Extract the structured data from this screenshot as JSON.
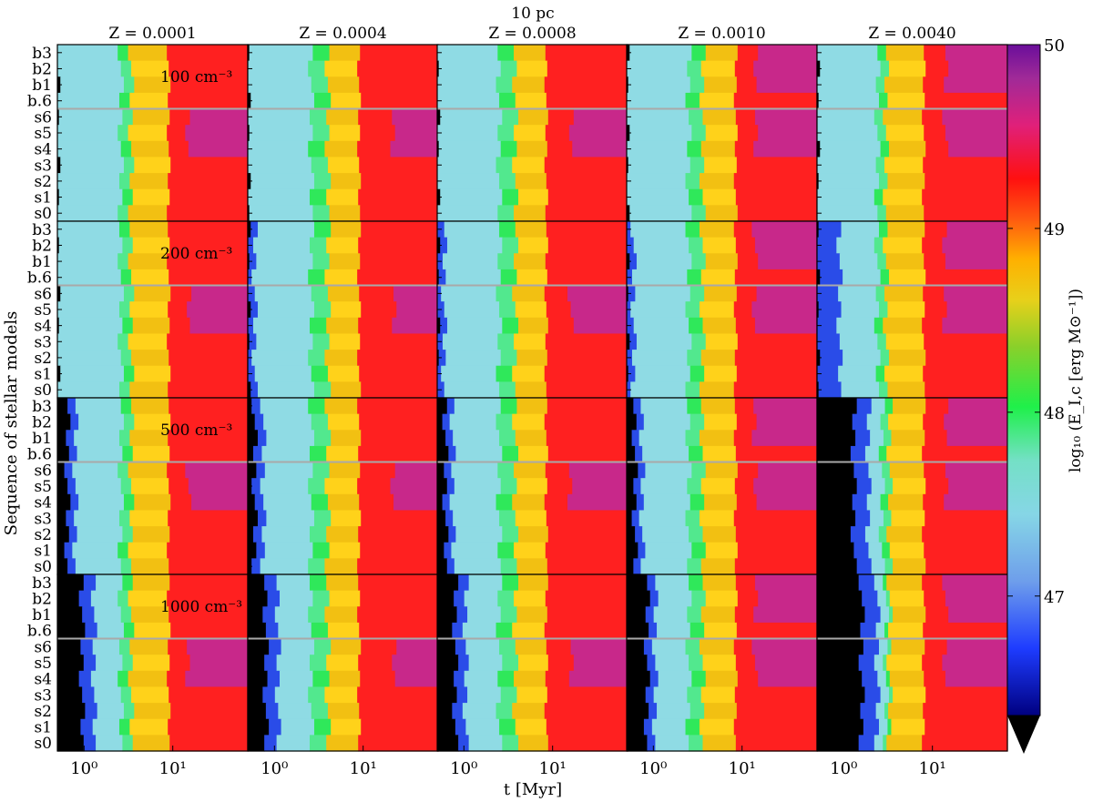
{
  "chart_data": {
    "type": "heatmap",
    "suptitle": "10 pc",
    "column_titles": [
      "Z = 0.0001",
      "Z = 0.0004",
      "Z = 0.0008",
      "Z = 0.0010",
      "Z = 0.0040"
    ],
    "row_annotations": [
      "100 cm⁻³",
      "200 cm⁻³",
      "500 cm⁻³",
      "1000 cm⁻³"
    ],
    "y_tick_labels": [
      "b3",
      "b2",
      "b1",
      "b.6",
      "s6",
      "s5",
      "s4",
      "s3",
      "s2",
      "s1",
      "s0"
    ],
    "x_tick_labels": [
      "10⁰",
      "10¹"
    ],
    "xlabel": "t [Myr]",
    "ylabel": "Sequence of stellar models",
    "colorbar": {
      "label": "log₁₀ (E_I,c [erg M⊙⁻¹])",
      "ticks": [
        "50",
        "49",
        "48",
        "47"
      ],
      "tick_values": [
        50,
        49,
        48,
        47
      ],
      "range": [
        46.35,
        50.0
      ],
      "extend": "min",
      "colormap": "gist_ncar-like"
    },
    "x_scale": "log",
    "xlim_myr": [
      0.5,
      70
    ],
    "densities_cm3": [
      100,
      200,
      500,
      1000
    ],
    "metallicities": [
      0.0001,
      0.0004,
      0.0008,
      0.001,
      0.004
    ],
    "separator_between": [
      "b.6",
      "s6"
    ],
    "approx_transition_times_myr": {
      "note": "transition times (Myr) at which the colour changes, per density row (columns left to right)",
      "black_end": [
        [
          0.5,
          0.5,
          0.5,
          0.5,
          0.5
        ],
        [
          0.5,
          0.5,
          0.5,
          0.5,
          0.5
        ],
        [
          0.65,
          0.6,
          0.62,
          0.62,
          1.3
        ],
        [
          0.95,
          0.8,
          0.8,
          0.85,
          1.6
        ]
      ],
      "blue_end": [
        [
          0.5,
          0.5,
          0.5,
          0.5,
          0.5
        ],
        [
          0.5,
          0.6,
          0.6,
          0.6,
          0.9
        ],
        [
          0.8,
          0.75,
          0.75,
          0.75,
          1.9
        ],
        [
          1.3,
          1.1,
          1.05,
          1.05,
          2.4
        ]
      ],
      "green_start": [
        [
          2.6,
          2.6,
          2.5,
          2.5,
          2.4
        ],
        [
          2.6,
          2.6,
          2.5,
          2.5,
          2.4
        ],
        [
          2.6,
          2.6,
          2.5,
          2.5,
          2.7
        ],
        [
          2.6,
          2.6,
          2.5,
          2.5,
          3.0
        ]
      ],
      "yellow_start": [
        [
          3.4,
          4.0,
          3.8,
          3.6,
          3.0
        ],
        [
          3.4,
          4.0,
          3.8,
          3.6,
          3.0
        ],
        [
          3.4,
          4.0,
          3.8,
          3.6,
          3.3
        ],
        [
          3.4,
          4.0,
          3.8,
          3.6,
          3.3
        ]
      ],
      "red_start": [
        [
          9.0,
          9.0,
          8.5,
          8.5,
          8.0
        ],
        [
          9.0,
          9.0,
          8.5,
          8.5,
          8.0
        ],
        [
          9.0,
          9.0,
          8.5,
          8.5,
          8.0
        ],
        [
          9.0,
          9.0,
          8.5,
          8.5,
          8.0
        ]
      ],
      "magenta_start": [
        [
          15,
          22,
          16,
          14,
          14
        ],
        [
          15,
          22,
          16,
          14,
          14
        ],
        [
          15,
          22,
          16,
          14,
          14
        ],
        [
          15,
          22,
          16,
          14,
          14
        ]
      ]
    }
  }
}
